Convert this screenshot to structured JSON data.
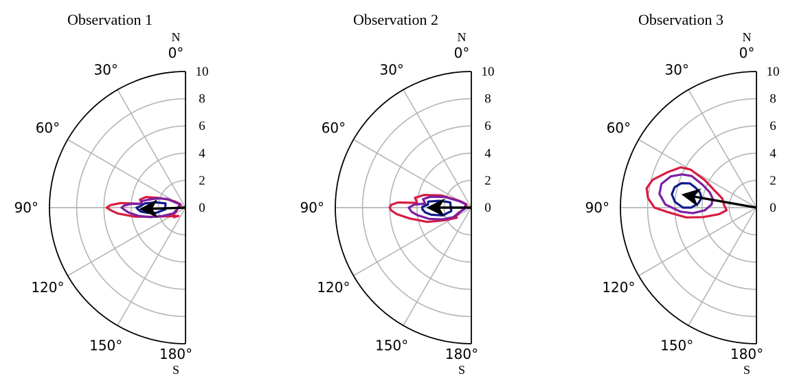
{
  "chart_data": [
    {
      "type": "polar-contour",
      "title": "Observation 1",
      "theta_ticks": [
        "0°",
        "30°",
        "60°",
        "90°",
        "120°",
        "150°",
        "180°"
      ],
      "theta_range_deg": [
        0,
        180
      ],
      "direction_labels": {
        "top": "N",
        "bottom": "S"
      },
      "r_ticks": [
        "0",
        "2",
        "4",
        "6",
        "8",
        "10"
      ],
      "rlim": [
        0,
        10
      ],
      "grid": true,
      "arrow": {
        "theta_deg": 92,
        "r": 3.1
      },
      "contours": [
        {
          "color": "#d81b42",
          "points": [
            [
              85,
              3.2
            ],
            [
              80,
              3.4
            ],
            [
              75,
              3.0
            ],
            [
              70,
              2.1
            ],
            [
              65,
              1.4
            ],
            [
              60,
              0.9
            ],
            [
              55,
              0.45
            ],
            [
              60,
              0.4
            ],
            [
              100,
              0.6
            ],
            [
              110,
              0.7
            ],
            [
              120,
              1.0
            ],
            [
              130,
              1.1
            ],
            [
              140,
              0.8
            ],
            [
              115,
              1.5
            ],
            [
              105,
              2.6
            ],
            [
              100,
              3.8
            ],
            [
              95,
              5.0
            ],
            [
              92,
              5.5
            ],
            [
              90,
              5.8
            ],
            [
              88,
              5.5
            ],
            [
              86,
              4.8
            ],
            [
              85,
              3.2
            ]
          ]
        },
        {
          "color": "#7b1fa2",
          "points": [
            [
              85,
              3.2
            ],
            [
              82,
              3.3
            ],
            [
              78,
              2.8
            ],
            [
              72,
              2.2
            ],
            [
              65,
              1.5
            ],
            [
              60,
              0.5
            ],
            [
              100,
              0.6
            ],
            [
              115,
              1.0
            ],
            [
              110,
              1.8
            ],
            [
              105,
              2.7
            ],
            [
              100,
              3.5
            ],
            [
              95,
              4.2
            ],
            [
              92,
              4.5
            ],
            [
              90,
              4.7
            ],
            [
              88,
              4.5
            ],
            [
              86,
              4.0
            ],
            [
              85,
              3.2
            ]
          ]
        },
        {
          "color": "#0d1b8a",
          "points": [
            [
              88,
              3.3
            ],
            [
              84,
              3.0
            ],
            [
              80,
              2.2
            ],
            [
              78,
              1.5
            ],
            [
              95,
              1.5
            ],
            [
              100,
              2.2
            ],
            [
              98,
              2.8
            ],
            [
              95,
              3.3
            ],
            [
              92,
              3.5
            ],
            [
              90,
              3.6
            ],
            [
              88,
              3.3
            ]
          ]
        }
      ]
    },
    {
      "type": "polar-contour",
      "title": "Observation 2",
      "theta_ticks": [
        "0°",
        "30°",
        "60°",
        "90°",
        "120°",
        "150°",
        "180°"
      ],
      "theta_range_deg": [
        0,
        180
      ],
      "direction_labels": {
        "top": "N",
        "bottom": "S"
      },
      "r_ticks": [
        "0",
        "2",
        "4",
        "6",
        "8",
        "10"
      ],
      "rlim": [
        0,
        10
      ],
      "grid": true,
      "arrow": {
        "theta_deg": 90,
        "r": 3.0
      },
      "contours": [
        {
          "color": "#d81b42",
          "points": [
            [
              85,
              4.0
            ],
            [
              80,
              4.2
            ],
            [
              75,
              3.6
            ],
            [
              68,
              2.4
            ],
            [
              60,
              1.0
            ],
            [
              55,
              0.45
            ],
            [
              60,
              0.4
            ],
            [
              100,
              0.6
            ],
            [
              112,
              0.9
            ],
            [
              120,
              1.3
            ],
            [
              125,
              1.3
            ],
            [
              115,
              2.2
            ],
            [
              108,
              3.4
            ],
            [
              100,
              4.6
            ],
            [
              95,
              5.5
            ],
            [
              92,
              5.9
            ],
            [
              90,
              6.0
            ],
            [
              88,
              5.9
            ],
            [
              86,
              5.4
            ],
            [
              85,
              4.0
            ]
          ]
        },
        {
          "color": "#7b1fa2",
          "points": [
            [
              85,
              3.4
            ],
            [
              80,
              3.6
            ],
            [
              75,
              3.1
            ],
            [
              68,
              2.1
            ],
            [
              62,
              1.0
            ],
            [
              58,
              0.5
            ],
            [
              100,
              0.5
            ],
            [
              112,
              1.0
            ],
            [
              118,
              1.5
            ],
            [
              112,
              2.3
            ],
            [
              105,
              3.2
            ],
            [
              98,
              4.0
            ],
            [
              94,
              4.4
            ],
            [
              90,
              4.6
            ],
            [
              87,
              4.2
            ],
            [
              85,
              3.4
            ]
          ]
        },
        {
          "color": "#0d1b8a",
          "points": [
            [
              86,
              3.2
            ],
            [
              82,
              3.2
            ],
            [
              78,
              2.4
            ],
            [
              76,
              1.6
            ],
            [
              100,
              1.5
            ],
            [
              105,
              2.2
            ],
            [
              100,
              3.0
            ],
            [
              96,
              3.4
            ],
            [
              92,
              3.6
            ],
            [
              89,
              3.6
            ],
            [
              86,
              3.2
            ]
          ]
        }
      ]
    },
    {
      "type": "polar-contour",
      "title": "Observation 3",
      "theta_ticks": [
        "0°",
        "30°",
        "60°",
        "90°",
        "120°",
        "150°",
        "180°"
      ],
      "theta_range_deg": [
        0,
        180
      ],
      "direction_labels": {
        "top": "N",
        "bottom": "S"
      },
      "r_ticks": [
        "0",
        "2",
        "4",
        "6",
        "8",
        "10"
      ],
      "rlim": [
        0,
        10
      ],
      "grid": true,
      "arrow": {
        "theta_deg": 80,
        "r": 5.3
      },
      "contours": [
        {
          "color": "#d81b42",
          "points": [
            [
              60,
              5.6
            ],
            [
              62,
              6.3
            ],
            [
              68,
              7.0
            ],
            [
              75,
              7.9
            ],
            [
              80,
              8.2
            ],
            [
              85,
              8.0
            ],
            [
              90,
              7.5
            ],
            [
              93,
              6.5
            ],
            [
              98,
              5.2
            ],
            [
              100,
              4.0
            ],
            [
              100,
              2.8
            ],
            [
              95,
              2.2
            ],
            [
              85,
              2.4
            ],
            [
              75,
              2.6
            ],
            [
              68,
              3.3
            ],
            [
              62,
              4.3
            ],
            [
              60,
              5.6
            ]
          ]
        },
        {
          "color": "#7b1fa2",
          "points": [
            [
              64,
              5.3
            ],
            [
              66,
              6.0
            ],
            [
              70,
              6.7
            ],
            [
              76,
              7.2
            ],
            [
              82,
              7.2
            ],
            [
              88,
              6.7
            ],
            [
              93,
              5.6
            ],
            [
              95,
              4.7
            ],
            [
              93,
              3.8
            ],
            [
              86,
              3.3
            ],
            [
              78,
              3.3
            ],
            [
              72,
              3.6
            ],
            [
              67,
              4.3
            ],
            [
              64,
              5.3
            ]
          ]
        },
        {
          "color": "#0d1b8a",
          "points": [
            [
              70,
              5.2
            ],
            [
              72,
              5.8
            ],
            [
              76,
              6.2
            ],
            [
              81,
              6.3
            ],
            [
              86,
              6.0
            ],
            [
              90,
              5.4
            ],
            [
              90,
              4.8
            ],
            [
              86,
              4.3
            ],
            [
              80,
              4.1
            ],
            [
              75,
              4.3
            ],
            [
              72,
              4.7
            ],
            [
              70,
              5.2
            ]
          ]
        }
      ]
    }
  ]
}
